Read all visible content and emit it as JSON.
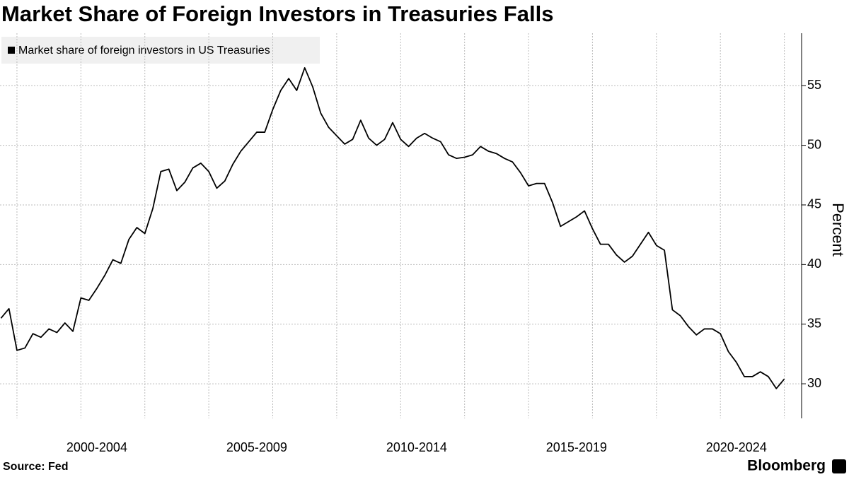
{
  "chart_data": {
    "type": "line",
    "title": "Market Share of Foreign Investors in Treasuries Falls",
    "y_label": "Percent",
    "source": "Source: Fed",
    "brand": "Bloomberg",
    "series": [
      {
        "name": "Market share of foreign investors in US Treasuries",
        "color": "#000000",
        "values": [
          35.5,
          36.3,
          32.8,
          33.0,
          34.2,
          33.9,
          34.6,
          34.3,
          35.1,
          34.4,
          37.2,
          37.0,
          38.0,
          39.1,
          40.4,
          40.1,
          42.1,
          43.1,
          42.6,
          44.7,
          47.8,
          48.0,
          46.2,
          46.9,
          48.1,
          48.5,
          47.8,
          46.4,
          47.0,
          48.4,
          49.5,
          50.3,
          51.1,
          51.1,
          53.0,
          54.6,
          55.6,
          54.6,
          56.5,
          54.9,
          52.7,
          51.5,
          50.8,
          50.1,
          50.5,
          52.1,
          50.6,
          50.0,
          50.5,
          51.9,
          50.5,
          49.9,
          50.6,
          51.0,
          50.6,
          50.3,
          49.2,
          48.9,
          49.0,
          49.2,
          49.9,
          49.5,
          49.3,
          48.9,
          48.6,
          47.7,
          46.6,
          46.8,
          46.8,
          45.2,
          43.2,
          43.6,
          44.0,
          44.5,
          43.0,
          41.7,
          41.7,
          40.8,
          40.2,
          40.7,
          41.7,
          42.7,
          41.6,
          41.2,
          36.2,
          35.7,
          34.8,
          34.1,
          34.6,
          34.6,
          34.2,
          32.7,
          31.8,
          30.6,
          30.6,
          31.0,
          30.6,
          29.6,
          30.4
        ]
      }
    ],
    "x": [
      1999.5,
      1999.75,
      2000,
      2000.25,
      2000.5,
      2000.75,
      2001,
      2001.25,
      2001.5,
      2001.75,
      2002,
      2002.25,
      2002.5,
      2002.75,
      2003,
      2003.25,
      2003.5,
      2003.75,
      2004,
      2004.25,
      2004.5,
      2004.75,
      2005,
      2005.25,
      2005.5,
      2005.75,
      2006,
      2006.25,
      2006.5,
      2006.75,
      2007,
      2007.25,
      2007.5,
      2007.75,
      2008,
      2008.25,
      2008.5,
      2008.75,
      2009,
      2009.25,
      2009.5,
      2009.75,
      2010,
      2010.25,
      2010.5,
      2010.75,
      2011,
      2011.25,
      2011.5,
      2011.75,
      2012,
      2012.25,
      2012.5,
      2012.75,
      2013,
      2013.25,
      2013.5,
      2013.75,
      2014,
      2014.25,
      2014.5,
      2014.75,
      2015,
      2015.25,
      2015.5,
      2015.75,
      2016,
      2016.25,
      2016.5,
      2016.75,
      2017,
      2017.25,
      2017.5,
      2017.75,
      2018,
      2018.25,
      2018.5,
      2018.75,
      2019,
      2019.25,
      2019.5,
      2019.75,
      2020,
      2020.25,
      2020.5,
      2020.75,
      2021,
      2021.25,
      2021.5,
      2021.75,
      2022,
      2022.25,
      2022.5,
      2022.75,
      2023,
      2023.25,
      2023.5,
      2023.75,
      2024
    ],
    "xlim": [
      1999.47,
      2024.54
    ],
    "xticks": [
      {
        "value": 2002.5,
        "label": "2000-2004"
      },
      {
        "value": 2007.5,
        "label": "2005-2009"
      },
      {
        "value": 2012.5,
        "label": "2010-2014"
      },
      {
        "value": 2017.5,
        "label": "2015-2019"
      },
      {
        "value": 2022.5,
        "label": "2020-2024"
      }
    ],
    "xgrid": [
      2000,
      2002,
      2004,
      2006,
      2008,
      2010,
      2012,
      2014,
      2016,
      2018,
      2020,
      2022,
      2024
    ],
    "ylim": [
      27.1,
      59.4
    ],
    "yticks": [
      30,
      35,
      40,
      45,
      50,
      55
    ],
    "grid": true,
    "legend": "top-left"
  }
}
